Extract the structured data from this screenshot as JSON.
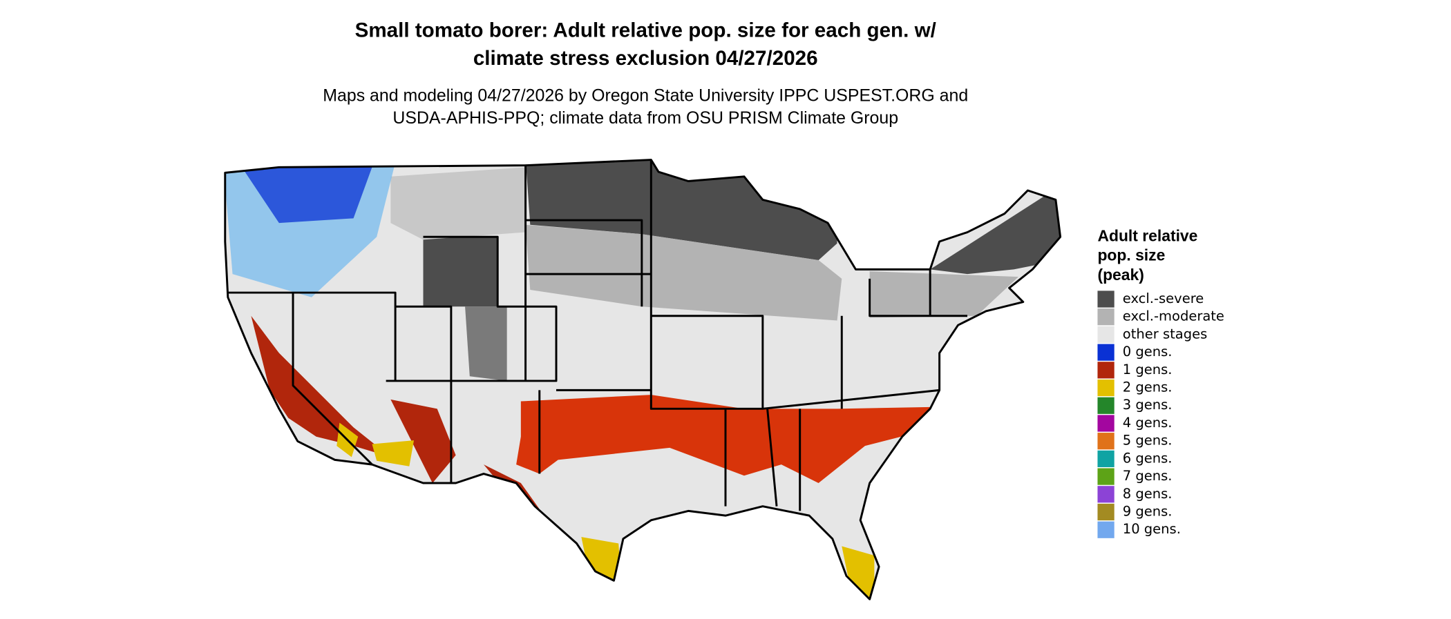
{
  "title_lines": [
    "Small tomato borer: Adult relative pop. size for each gen. w/",
    "climate stress exclusion 04/27/2026"
  ],
  "subtitle_lines": [
    "Maps and modeling 04/27/2026 by Oregon State University IPPC USPEST.ORG and",
    "USDA-APHIS-PPQ; climate data from OSU PRISM Climate Group"
  ],
  "legend": {
    "title_lines": [
      "Adult relative",
      "pop. size",
      "(peak)"
    ],
    "items": [
      {
        "label": "excl.-severe",
        "color": "#4d4d4d"
      },
      {
        "label": "excl.-moderate",
        "color": "#b3b3b3"
      },
      {
        "label": "other stages",
        "color": "#e6e6e6"
      },
      {
        "label": "0 gens.",
        "color": "#0a31d4"
      },
      {
        "label": "1 gens.",
        "color": "#b1260c"
      },
      {
        "label": "2 gens.",
        "color": "#e3c000"
      },
      {
        "label": "3 gens.",
        "color": "#24862a"
      },
      {
        "label": "4 gens.",
        "color": "#a3069f"
      },
      {
        "label": "5 gens.",
        "color": "#e0721a"
      },
      {
        "label": "6 gens.",
        "color": "#10a3a3"
      },
      {
        "label": "7 gens.",
        "color": "#5da317"
      },
      {
        "label": "8 gens.",
        "color": "#8c43d6"
      },
      {
        "label": "9 gens.",
        "color": "#a38b22"
      },
      {
        "label": "10 gens.",
        "color": "#72a8ee"
      }
    ]
  }
}
